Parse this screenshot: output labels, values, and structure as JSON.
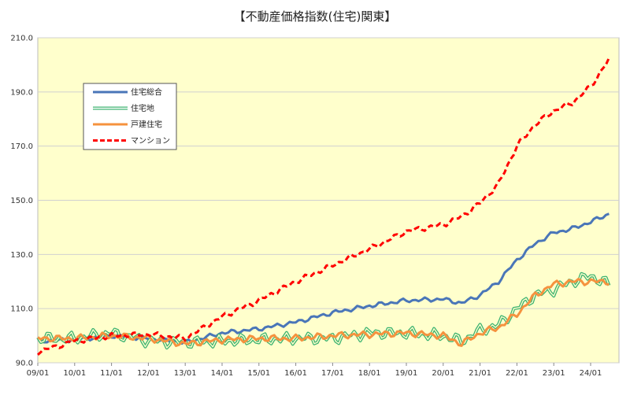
{
  "chart_data": {
    "type": "line",
    "title": "【不動産価格指数(住宅)関東】",
    "xlabel": "",
    "ylabel": "",
    "ylim": [
      90,
      210
    ],
    "yticks": [
      "90.0",
      "110.0",
      "130.0",
      "150.0",
      "170.0",
      "190.0",
      "210.0"
    ],
    "xticks": [
      "09/01",
      "10/01",
      "11/01",
      "12/01",
      "13/01",
      "14/01",
      "15/01",
      "16/01",
      "17/01",
      "18/01",
      "19/01",
      "20/01",
      "21/01",
      "22/01",
      "23/01",
      "24/01"
    ],
    "grid": true,
    "legend": "upper-left",
    "plot_background": "#ffffcc",
    "series": [
      {
        "name": "住宅総合",
        "color": "#4a76b8",
        "style": "solid",
        "points": [
          [
            "09/01",
            98
          ],
          [
            "10/01",
            98.5
          ],
          [
            "11/01",
            100
          ],
          [
            "12/01",
            99
          ],
          [
            "13/01",
            97.5
          ],
          [
            "14/01",
            101
          ],
          [
            "15/01",
            102.5
          ],
          [
            "16/01",
            105
          ],
          [
            "17/01",
            108.5
          ],
          [
            "18/01",
            111
          ],
          [
            "19/01",
            113
          ],
          [
            "20/01",
            113.5
          ],
          [
            "20/07",
            112
          ],
          [
            "21/01",
            115
          ],
          [
            "21/07",
            120
          ],
          [
            "22/01",
            128
          ],
          [
            "22/07",
            134
          ],
          [
            "23/01",
            138
          ],
          [
            "23/07",
            139.5
          ],
          [
            "24/01",
            142
          ],
          [
            "24/07",
            145
          ]
        ]
      },
      {
        "name": "住宅地",
        "color": "#3cb371",
        "style": "double",
        "points": [
          [
            "09/01",
            99
          ],
          [
            "10/01",
            99
          ],
          [
            "11/01",
            101
          ],
          [
            "12/01",
            98
          ],
          [
            "13/01",
            97.5
          ],
          [
            "14/01",
            98
          ],
          [
            "15/01",
            98.5
          ],
          [
            "16/01",
            99
          ],
          [
            "17/01",
            99
          ],
          [
            "18/01",
            101
          ],
          [
            "19/01",
            101
          ],
          [
            "20/01",
            100
          ],
          [
            "20/07",
            98
          ],
          [
            "21/01",
            102
          ],
          [
            "21/07",
            104
          ],
          [
            "22/01",
            110
          ],
          [
            "22/07",
            115
          ],
          [
            "23/01",
            117
          ],
          [
            "23/07",
            120
          ],
          [
            "24/01",
            122
          ],
          [
            "24/07",
            119
          ]
        ]
      },
      {
        "name": "戸建住宅",
        "color": "#f5923e",
        "style": "solid",
        "points": [
          [
            "09/01",
            99
          ],
          [
            "10/01",
            99
          ],
          [
            "11/01",
            100
          ],
          [
            "12/01",
            99
          ],
          [
            "13/01",
            97
          ],
          [
            "14/01",
            98.5
          ],
          [
            "15/01",
            99
          ],
          [
            "16/01",
            99
          ],
          [
            "17/01",
            100
          ],
          [
            "18/01",
            100.5
          ],
          [
            "19/01",
            101
          ],
          [
            "20/01",
            100
          ],
          [
            "20/07",
            97
          ],
          [
            "21/01",
            101
          ],
          [
            "21/07",
            103
          ],
          [
            "22/01",
            108
          ],
          [
            "22/07",
            115
          ],
          [
            "23/01",
            119
          ],
          [
            "23/07",
            120
          ],
          [
            "24/01",
            120
          ],
          [
            "24/07",
            120
          ]
        ]
      },
      {
        "name": "マンション",
        "color": "#ff0000",
        "style": "dashed",
        "points": [
          [
            "09/01",
            94
          ],
          [
            "10/01",
            98
          ],
          [
            "11/01",
            100
          ],
          [
            "12/01",
            100.5
          ],
          [
            "13/01",
            99
          ],
          [
            "14/01",
            107
          ],
          [
            "15/01",
            113
          ],
          [
            "16/01",
            120
          ],
          [
            "17/01",
            126
          ],
          [
            "18/01",
            132
          ],
          [
            "19/01",
            138.5
          ],
          [
            "20/01",
            141
          ],
          [
            "20/07",
            144
          ],
          [
            "21/01",
            149
          ],
          [
            "21/07",
            156
          ],
          [
            "22/01",
            170
          ],
          [
            "22/07",
            178
          ],
          [
            "23/01",
            183
          ],
          [
            "23/07",
            186
          ],
          [
            "24/01",
            192
          ],
          [
            "24/07",
            202
          ]
        ]
      }
    ]
  }
}
